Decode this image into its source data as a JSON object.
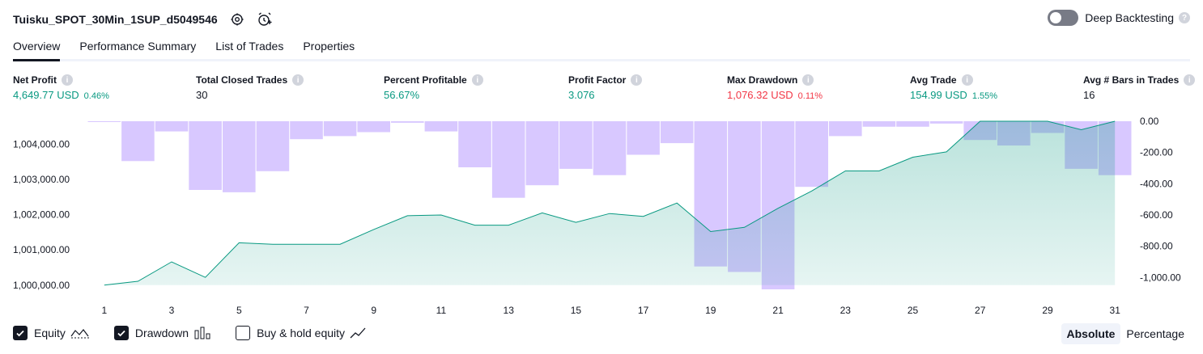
{
  "header": {
    "strategy_name": "Tuisku_SPOT_30Min_1SUP_d5049546",
    "deep_backtesting_label": "Deep Backtesting",
    "deep_backtesting_enabled": false
  },
  "tabs": [
    {
      "label": "Overview",
      "active": true
    },
    {
      "label": "Performance Summary",
      "active": false
    },
    {
      "label": "List of Trades",
      "active": false
    },
    {
      "label": "Properties",
      "active": false
    }
  ],
  "stats": [
    {
      "title": "Net Profit",
      "value": "4,649.77 USD",
      "sub": "0.46%",
      "color": "green"
    },
    {
      "title": "Total Closed Trades",
      "value": "30",
      "sub": "",
      "color": "dark"
    },
    {
      "title": "Percent Profitable",
      "value": "56.67%",
      "sub": "",
      "color": "green"
    },
    {
      "title": "Profit Factor",
      "value": "3.076",
      "sub": "",
      "color": "green"
    },
    {
      "title": "Max Drawdown",
      "value": "1,076.32 USD",
      "sub": "0.11%",
      "color": "red"
    },
    {
      "title": "Avg Trade",
      "value": "154.99 USD",
      "sub": "1.55%",
      "color": "green"
    },
    {
      "title": "Avg # Bars in Trades",
      "value": "16",
      "sub": "",
      "color": "dark"
    }
  ],
  "chart_data": {
    "type": "area",
    "x_ticks": [
      "1",
      "3",
      "5",
      "7",
      "9",
      "11",
      "13",
      "15",
      "17",
      "19",
      "21",
      "23",
      "25",
      "27",
      "29",
      "31"
    ],
    "left_axis_ticks": [
      "1,004,000.00",
      "1,003,000.00",
      "1,002,000.00",
      "1,001,000.00",
      "1,000,000.00"
    ],
    "right_axis_ticks": [
      "0.00",
      "-200.00",
      "-400.00",
      "-600.00",
      "-800.00",
      "-1,000.00"
    ],
    "left_ylim": [
      999880,
      1004650
    ],
    "right_ylim": [
      -1076.32,
      0
    ],
    "series": [
      {
        "name": "Equity",
        "color": "#089981",
        "x": [
          1,
          2,
          3,
          4,
          5,
          6,
          7,
          8,
          9,
          10,
          11,
          12,
          13,
          14,
          15,
          16,
          17,
          18,
          19,
          20,
          21,
          22,
          23,
          24,
          25,
          26,
          27,
          28,
          29,
          30,
          31
        ],
        "values": [
          1000000,
          1000110,
          1000660,
          1000220,
          1001200,
          1001160,
          1001160,
          1001160,
          1001580,
          1001970,
          1001990,
          1001700,
          1001700,
          1002050,
          1001780,
          1002030,
          1001950,
          1002330,
          1001520,
          1001640,
          1002180,
          1002670,
          1003240,
          1003240,
          1003630,
          1003780,
          1004650,
          1004650,
          1004650,
          1004410,
          1004650
        ]
      },
      {
        "name": "Drawdown",
        "color": "#b89bff",
        "x": [
          1,
          2,
          3,
          4,
          5,
          6,
          7,
          8,
          9,
          10,
          11,
          12,
          13,
          14,
          15,
          16,
          17,
          18,
          19,
          20,
          21,
          22,
          23,
          24,
          25,
          26,
          27,
          28,
          29,
          30,
          31
        ],
        "values": [
          -5,
          -255,
          -65,
          -440,
          -455,
          -320,
          -115,
          -95,
          -70,
          -10,
          -65,
          -295,
          -490,
          -410,
          -305,
          -345,
          -215,
          -140,
          -930,
          -965,
          -1076.32,
          -420,
          -95,
          -35,
          -35,
          -15,
          -120,
          -155,
          -75,
          -305,
          -345
        ]
      }
    ]
  },
  "legend": {
    "equity": {
      "label": "Equity",
      "checked": true
    },
    "drawdown": {
      "label": "Drawdown",
      "checked": true
    },
    "buy_hold": {
      "label": "Buy & hold equity",
      "checked": false
    }
  },
  "modes": {
    "absolute": "Absolute",
    "percentage": "Percentage",
    "active": "absolute"
  }
}
